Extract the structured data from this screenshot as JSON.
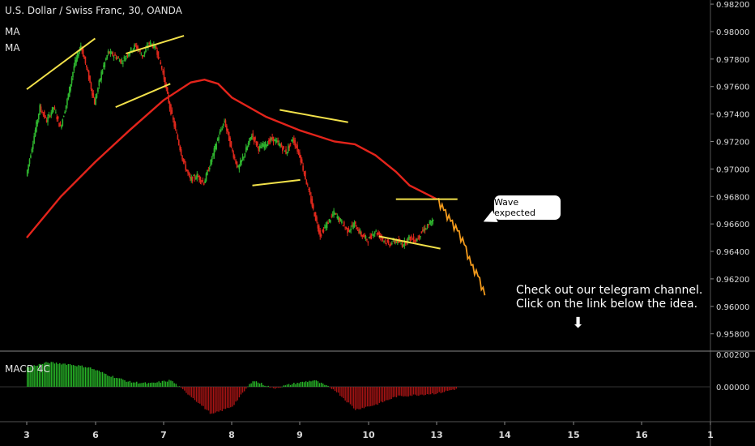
{
  "header": {
    "title": "U.S. Dollar / Swiss Franc, 30, OANDA",
    "indicator1": "MA",
    "indicator2": "MA"
  },
  "annotations": {
    "callout": "Wave expected",
    "note_line1": "Check out our telegram channel.",
    "note_line2": "Click on the link below the idea.",
    "arrow": "⬇"
  },
  "macd_label": "MACD 4C",
  "colors": {
    "background": "#000000",
    "candle_up": "#2fb52f",
    "candle_down": "#e0281c",
    "moving_average": "#e3241b",
    "trendlines": "#f2e14a",
    "projection": "#f29a1c",
    "macd_positive": "#27b427",
    "macd_negative": "#a81414",
    "axis_text": "#d9d9d9"
  },
  "chart_data": {
    "type": "line",
    "title": "U.S. Dollar / Swiss Franc, 30, OANDA",
    "x_tick_labels": [
      "3",
      "6",
      "7",
      "8",
      "9",
      "10",
      "13",
      "14",
      "15",
      "16",
      "1"
    ],
    "y_tick_labels": [
      "0.98200",
      "0.98000",
      "0.97800",
      "0.97600",
      "0.97400",
      "0.97200",
      "0.97000",
      "0.96800",
      "0.96600",
      "0.96400",
      "0.96200",
      "0.96000",
      "0.95800"
    ],
    "ylim": [
      0.9568,
      0.9823
    ],
    "series": [
      {
        "role": "price",
        "x": [
          0,
          0.1,
          0.2,
          0.3,
          0.4,
          0.5,
          0.6,
          0.7,
          0.8,
          0.9,
          1.0,
          1.1,
          1.2,
          1.3,
          1.4,
          1.5,
          1.6,
          1.7,
          1.8,
          1.9,
          2.0,
          2.1,
          2.2,
          2.3,
          2.4,
          2.5,
          2.6,
          2.7,
          2.8,
          2.9,
          3.0,
          3.1,
          3.2,
          3.3,
          3.4,
          3.5,
          3.6,
          3.7,
          3.8,
          3.9,
          4.0,
          4.1,
          4.2,
          4.3,
          4.4,
          4.5,
          4.6,
          4.7,
          4.8,
          4.9,
          5.0,
          5.1,
          5.2,
          5.3,
          5.4,
          5.5,
          5.6,
          5.7,
          5.8,
          5.9,
          5.95
        ],
        "values": [
          0.9695,
          0.972,
          0.9745,
          0.9735,
          0.9745,
          0.973,
          0.975,
          0.9775,
          0.979,
          0.977,
          0.9748,
          0.977,
          0.9785,
          0.9782,
          0.9778,
          0.9785,
          0.979,
          0.9782,
          0.9792,
          0.9788,
          0.977,
          0.9745,
          0.9725,
          0.9705,
          0.9692,
          0.9695,
          0.969,
          0.9705,
          0.9722,
          0.9735,
          0.9715,
          0.97,
          0.9712,
          0.9725,
          0.9715,
          0.9718,
          0.9722,
          0.9718,
          0.9712,
          0.9722,
          0.971,
          0.969,
          0.967,
          0.9652,
          0.966,
          0.9668,
          0.9662,
          0.9655,
          0.966,
          0.9652,
          0.9648,
          0.9655,
          0.965,
          0.9645,
          0.9648,
          0.9645,
          0.965,
          0.9648,
          0.9655,
          0.966,
          0.9662
        ]
      },
      {
        "name": "MA",
        "role": "moving_average",
        "x": [
          0,
          0.5,
          1.0,
          1.5,
          2.0,
          2.4,
          2.6,
          2.8,
          3.0,
          3.5,
          4.0,
          4.5,
          4.8,
          5.1,
          5.4,
          5.6,
          6.0
        ],
        "values": [
          0.965,
          0.968,
          0.9705,
          0.9728,
          0.975,
          0.9763,
          0.9765,
          0.9762,
          0.9752,
          0.9738,
          0.9728,
          0.972,
          0.9718,
          0.971,
          0.9698,
          0.9688,
          0.9678
        ]
      },
      {
        "role": "projection",
        "x": [
          6.0,
          6.1,
          6.2,
          6.3,
          6.4,
          6.5,
          6.6,
          6.7
        ],
        "values": [
          0.9678,
          0.967,
          0.9662,
          0.9655,
          0.9645,
          0.963,
          0.9622,
          0.9608
        ]
      }
    ],
    "trendlines": [
      {
        "x": [
          0.0,
          1.0
        ],
        "values": [
          0.9758,
          0.9795
        ]
      },
      {
        "x": [
          1.45,
          2.3
        ],
        "values": [
          0.9784,
          0.9797
        ]
      },
      {
        "x": [
          1.3,
          2.1
        ],
        "values": [
          0.9745,
          0.9762
        ]
      },
      {
        "x": [
          3.7,
          4.7
        ],
        "values": [
          0.9743,
          0.9734
        ]
      },
      {
        "x": [
          3.3,
          4.0
        ],
        "values": [
          0.9688,
          0.9692
        ]
      },
      {
        "x": [
          5.4,
          6.3
        ],
        "values": [
          0.9678,
          0.9678
        ]
      },
      {
        "x": [
          5.15,
          6.05
        ],
        "values": [
          0.9651,
          0.9642
        ]
      }
    ],
    "macd": {
      "x": [
        0,
        0.3,
        0.6,
        0.9,
        1.2,
        1.5,
        1.8,
        2.1,
        2.4,
        2.7,
        3.0,
        3.3,
        3.6,
        3.9,
        4.2,
        4.5,
        4.8,
        5.1,
        5.4,
        5.7,
        6.0,
        6.3
      ],
      "values": [
        0.6,
        0.75,
        0.7,
        0.6,
        0.35,
        0.15,
        0.1,
        0.2,
        -0.3,
        -0.85,
        -0.6,
        0.2,
        -0.05,
        0.1,
        0.2,
        -0.1,
        -0.7,
        -0.55,
        -0.3,
        -0.25,
        -0.2,
        -0.05
      ]
    }
  }
}
